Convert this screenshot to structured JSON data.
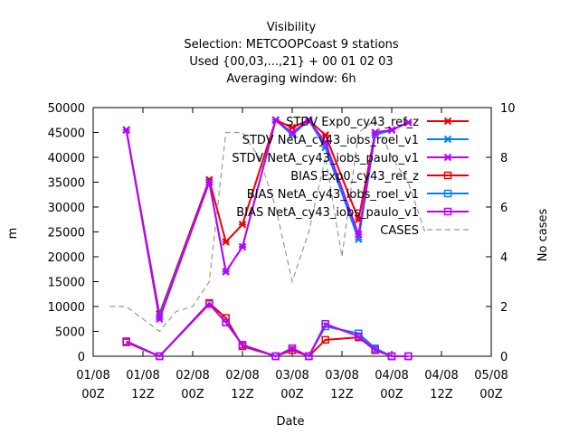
{
  "chart_data": {
    "type": "line",
    "title": [
      "Visibility",
      "Selection: METCOOPCoast      9 stations",
      "Used {00,03,...,21} + 00 01 02 03",
      "Averaging window:  6h"
    ],
    "xlabel": "Date",
    "ylabel": "m",
    "y2label": "No cases",
    "ylim": [
      0,
      50000
    ],
    "y2lim": [
      0,
      10
    ],
    "xlim": [
      "2000-01-08 00Z",
      "2000-01-05 00Z"
    ],
    "yticks": [
      "0",
      "5000",
      "10000",
      "15000",
      "20000",
      "25000",
      "30000",
      "35000",
      "40000",
      "45000",
      "50000"
    ],
    "y2ticks": [
      "0",
      "2",
      "4",
      "6",
      "8",
      "10"
    ],
    "xticks": [
      {
        "l1": "01/08",
        "l2": "00Z"
      },
      {
        "l1": "01/08",
        "l2": "12Z"
      },
      {
        "l1": "02/08",
        "l2": "00Z"
      },
      {
        "l1": "02/08",
        "l2": "12Z"
      },
      {
        "l1": "03/08",
        "l2": "00Z"
      },
      {
        "l1": "03/08",
        "l2": "12Z"
      },
      {
        "l1": "04/08",
        "l2": "00Z"
      },
      {
        "l1": "04/08",
        "l2": "12Z"
      },
      {
        "l1": "05/08",
        "l2": "00Z"
      }
    ],
    "legend_position": "top-right",
    "series": [
      {
        "name": "STDV Exp0_cy43_ref_z",
        "color": "#ee0000",
        "marker": "x",
        "axis": "y1",
        "x": [
          6,
          12,
          21,
          24,
          27,
          33,
          36,
          39,
          42,
          48,
          51,
          54,
          57,
          60,
          66
        ],
        "y": [
          45500,
          8500,
          35500,
          23000,
          26500,
          47500,
          46000,
          47500,
          44500,
          27500,
          45000,
          45500,
          47000,
          null,
          null
        ]
      },
      {
        "name": "STDV NetA_cy43_iobs_roel_v1",
        "color": "#0080ff",
        "marker": "x",
        "axis": "y1",
        "x": [
          6,
          12,
          21,
          24,
          27,
          33,
          36,
          39,
          42,
          48,
          51,
          54,
          57
        ],
        "y": [
          45500,
          8000,
          35000,
          17000,
          22000,
          47500,
          44500,
          47500,
          42000,
          23500,
          44500,
          45500,
          47000
        ]
      },
      {
        "name": "STDV NetA_cy43_iobs_paulo_v1",
        "color": "#bb00ff",
        "marker": "x",
        "axis": "y1",
        "x": [
          6,
          12,
          21,
          24,
          27,
          33,
          36,
          39,
          42,
          48,
          51,
          54,
          57
        ],
        "y": [
          45500,
          7500,
          35000,
          17000,
          22000,
          47500,
          45000,
          47500,
          43000,
          24500,
          45000,
          45500,
          47000
        ]
      },
      {
        "name": "BIAS Exp0_cy43_ref_z",
        "color": "#ee0000",
        "marker": "square",
        "axis": "y1",
        "x": [
          6,
          12,
          21,
          24,
          27,
          33,
          36,
          39,
          42,
          48,
          51,
          54,
          57
        ],
        "y": [
          2800,
          0,
          10700,
          7700,
          2000,
          0,
          1200,
          0,
          3300,
          3800,
          1200,
          0,
          0
        ]
      },
      {
        "name": "BIAS NetA_cy43_iobs_roel_v1",
        "color": "#0080ff",
        "marker": "square",
        "axis": "y1",
        "x": [
          6,
          12,
          21,
          24,
          27,
          33,
          36,
          39,
          42,
          48,
          51,
          54,
          57
        ],
        "y": [
          3000,
          0,
          10500,
          6800,
          2300,
          0,
          1600,
          0,
          6000,
          4600,
          1600,
          0,
          0
        ]
      },
      {
        "name": "BIAS NetA_cy43_iobs_paulo_v1",
        "color": "#bb00ff",
        "marker": "square",
        "axis": "y1",
        "x": [
          6,
          12,
          21,
          24,
          27,
          33,
          36,
          39,
          42,
          48,
          51,
          54,
          57
        ],
        "y": [
          3000,
          0,
          10500,
          6800,
          2300,
          0,
          1600,
          0,
          6500,
          4000,
          1300,
          0,
          0
        ]
      },
      {
        "name": "CASES",
        "color": "#999999",
        "marker": "none",
        "dash": true,
        "axis": "y2",
        "x": [
          3,
          6,
          9,
          12,
          15,
          18,
          21,
          24,
          27,
          30,
          33,
          36,
          39,
          42,
          45,
          48,
          51,
          54,
          57,
          60
        ],
        "y": [
          2,
          2,
          1.5,
          1,
          1.8,
          2,
          3,
          9,
          9,
          8,
          6,
          3,
          5,
          8,
          4,
          9,
          9.5,
          8,
          7,
          5
        ]
      }
    ]
  }
}
